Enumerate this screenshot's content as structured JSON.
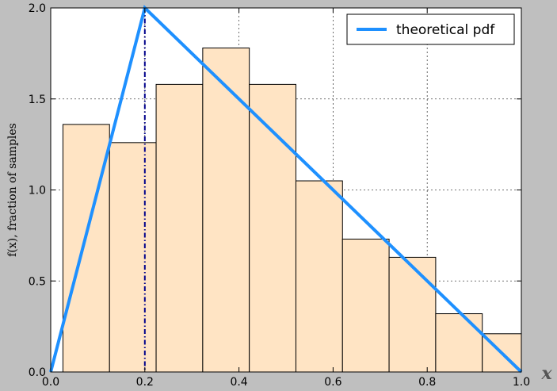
{
  "chart_data": {
    "type": "bar",
    "title": "",
    "xlabel": "x",
    "ylabel": "f(x), fraction of samples",
    "xlim": [
      0.0,
      1.0
    ],
    "ylim": [
      0.0,
      2.0
    ],
    "xticks": [
      "0.0",
      "0.2",
      "0.4",
      "0.6",
      "0.8",
      "1.0"
    ],
    "yticks": [
      "0.0",
      "0.5",
      "1.0",
      "1.5",
      "2.0"
    ],
    "grid": true,
    "legend_position": "top-right",
    "histogram": {
      "bin_edges": [
        0.026,
        0.125,
        0.224,
        0.323,
        0.422,
        0.521,
        0.62,
        0.719,
        0.818,
        0.917,
        1.0
      ],
      "values": [
        1.36,
        1.26,
        1.58,
        1.78,
        1.58,
        1.05,
        0.73,
        0.63,
        0.32,
        0.21
      ],
      "fill_color": "#ffe4c4",
      "edge_color": "#000000"
    },
    "series": [
      {
        "name": "theoretical pdf",
        "type": "line",
        "color": "#1e90ff",
        "x": [
          0.0,
          0.2,
          1.0
        ],
        "y": [
          0.0,
          2.0,
          0.0
        ]
      }
    ],
    "vline": {
      "x": 0.2,
      "color": "#00008b",
      "style": "dash-dot"
    }
  }
}
